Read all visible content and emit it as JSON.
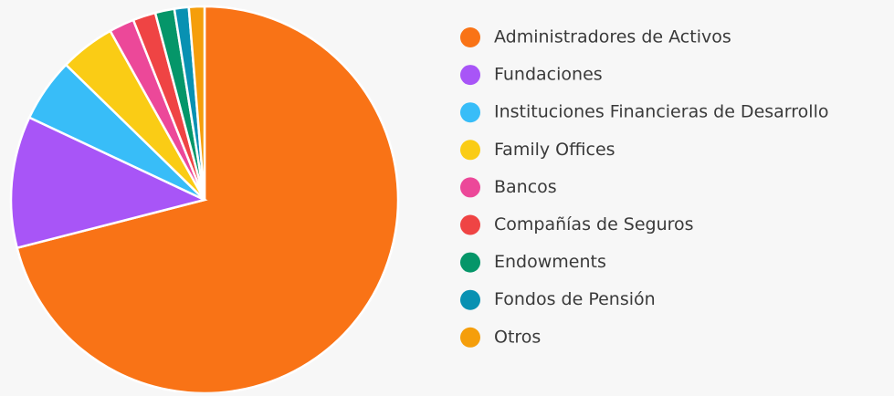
{
  "chart_data": {
    "type": "pie",
    "categories": [
      "Administradores de Activos",
      "Fundaciones",
      "Instituciones Financieras de Desarrollo",
      "Family Offices",
      "Bancos",
      "Compañías de Seguros",
      "Endowments",
      "Fondos de Pensión",
      "Otros"
    ],
    "values": [
      71,
      11,
      5.3,
      4.6,
      2.1,
      1.9,
      1.6,
      1.2,
      1.3
    ],
    "colors": [
      "#f97316",
      "#a855f7",
      "#38bdf8",
      "#facc15",
      "#ec4899",
      "#ef4444",
      "#059669",
      "#0891b2",
      "#f59e0b"
    ],
    "legend": "right"
  }
}
